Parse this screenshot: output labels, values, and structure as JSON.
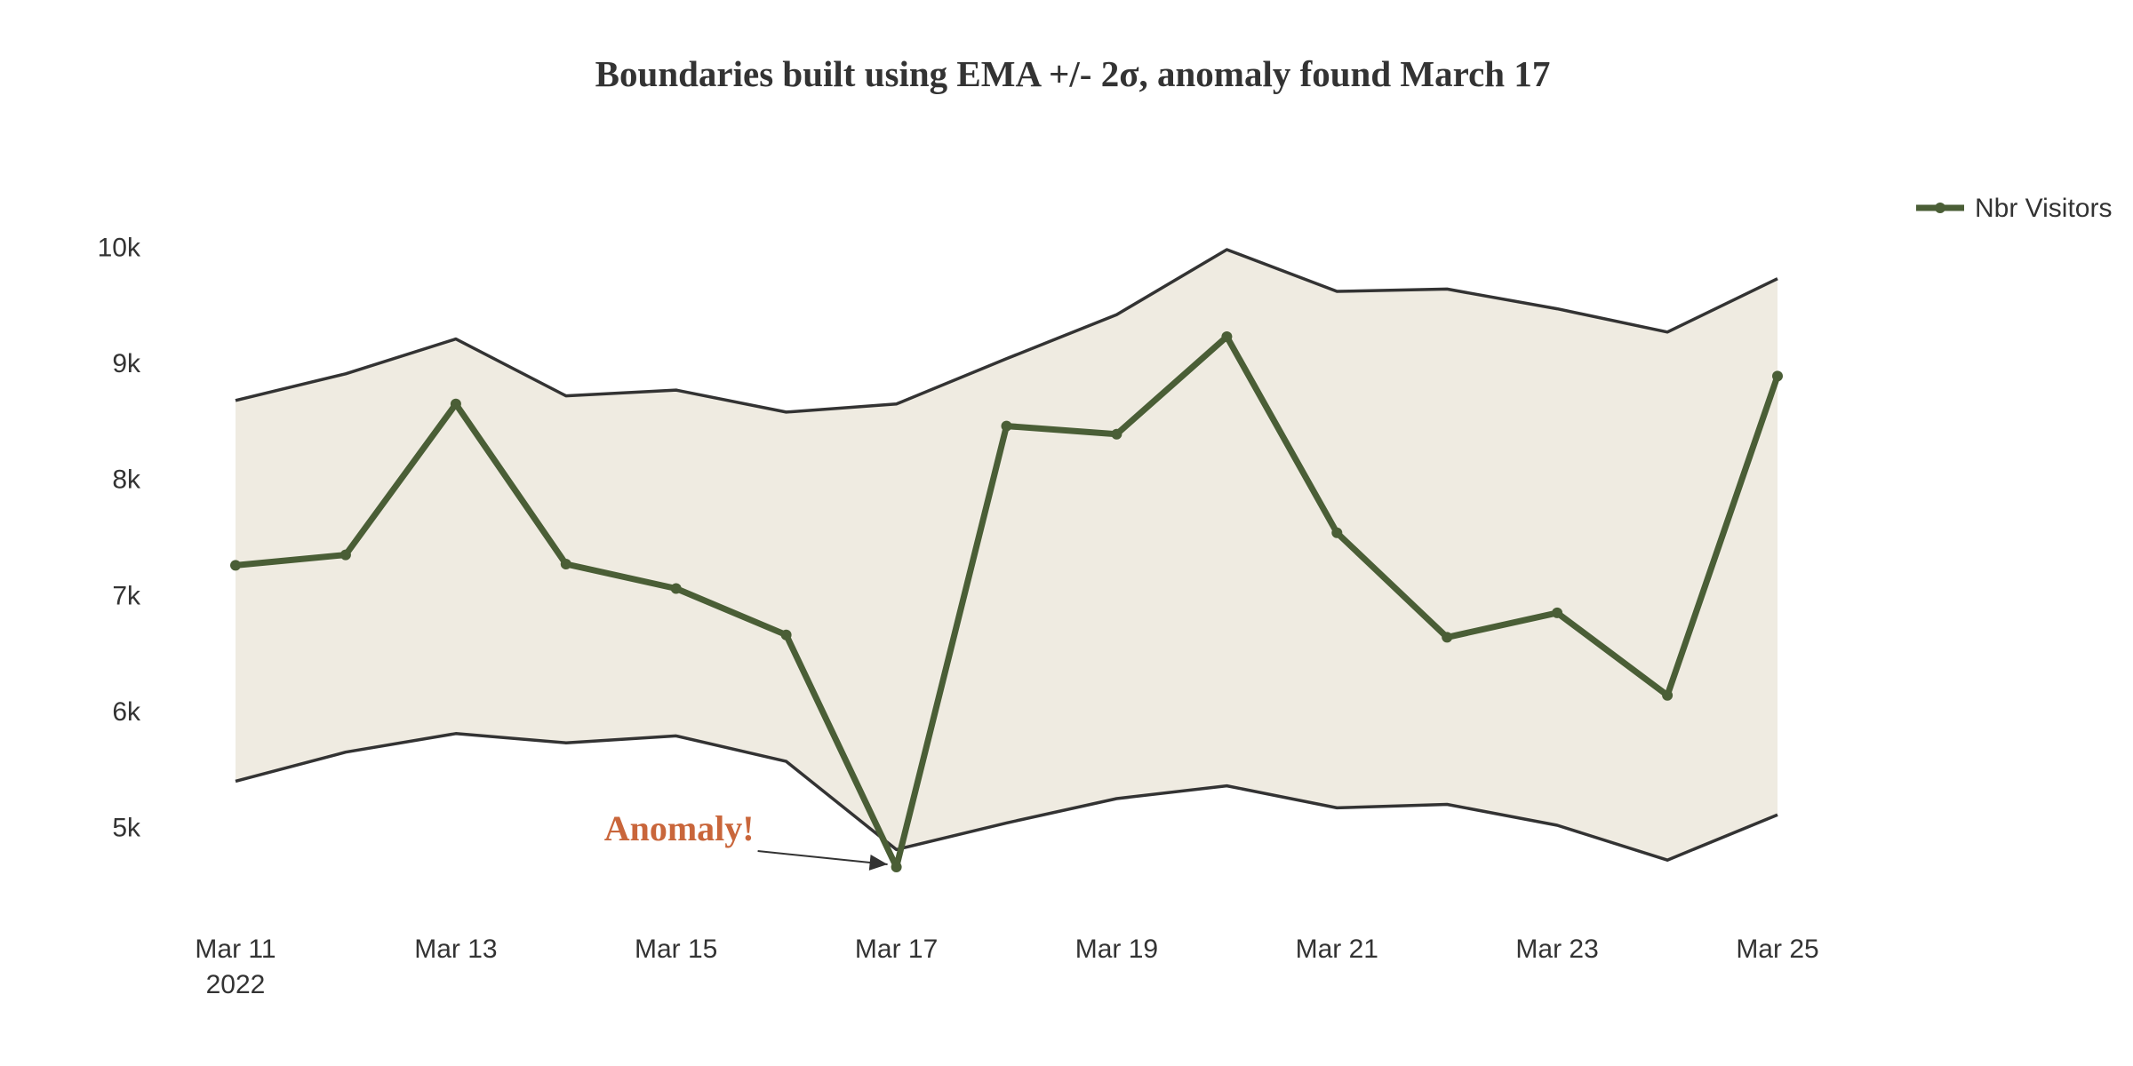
{
  "chart_data": {
    "type": "line",
    "title": "Boundaries built using EMA +/- 2σ, anomaly found March 17",
    "xlabel": "",
    "ylabel": "",
    "x": [
      "2022-03-11",
      "2022-03-12",
      "2022-03-13",
      "2022-03-14",
      "2022-03-15",
      "2022-03-16",
      "2022-03-17",
      "2022-03-18",
      "2022-03-19",
      "2022-03-20",
      "2022-03-21",
      "2022-03-22",
      "2022-03-23",
      "2022-03-24",
      "2022-03-25"
    ],
    "x_ticks": [
      {
        "date": "2022-03-11",
        "label": "Mar 11",
        "sublabel": "2022"
      },
      {
        "date": "2022-03-13",
        "label": "Mar 13",
        "sublabel": ""
      },
      {
        "date": "2022-03-15",
        "label": "Mar 15",
        "sublabel": ""
      },
      {
        "date": "2022-03-17",
        "label": "Mar 17",
        "sublabel": ""
      },
      {
        "date": "2022-03-19",
        "label": "Mar 19",
        "sublabel": ""
      },
      {
        "date": "2022-03-21",
        "label": "Mar 21",
        "sublabel": ""
      },
      {
        "date": "2022-03-23",
        "label": "Mar 23",
        "sublabel": ""
      },
      {
        "date": "2022-03-25",
        "label": "Mar 25",
        "sublabel": ""
      }
    ],
    "y_ticks": [
      {
        "value": 5000,
        "label": "5k"
      },
      {
        "value": 6000,
        "label": "6k"
      },
      {
        "value": 7000,
        "label": "7k"
      },
      {
        "value": 8000,
        "label": "8k"
      },
      {
        "value": 9000,
        "label": "9k"
      },
      {
        "value": 10000,
        "label": "10k"
      }
    ],
    "ylim": [
      4400,
      10600
    ],
    "grid": false,
    "legend_position": "top-right",
    "series": [
      {
        "name": "Nbr Visitors",
        "color": "#4a5e36",
        "values": [
          7260,
          7350,
          8650,
          7270,
          7060,
          6660,
          4660,
          8460,
          8390,
          9230,
          7540,
          6640,
          6850,
          6140,
          8890
        ]
      }
    ],
    "bands": [
      {
        "role": "EMA + 2σ / EMA - 2σ",
        "fill_color": "#efebe1",
        "line_color": "#333333",
        "upper": [
          8680,
          8910,
          9210,
          8720,
          8770,
          8580,
          8650,
          9040,
          9420,
          9980,
          9620,
          9640,
          9470,
          9270,
          9730
        ],
        "lower": [
          5400,
          5650,
          5810,
          5730,
          5790,
          5570,
          4810,
          5040,
          5250,
          5360,
          5170,
          5200,
          5020,
          4720,
          5110
        ]
      }
    ],
    "annotations": [
      {
        "text": "Anomaly!",
        "x": "2022-03-17",
        "y": 4660,
        "color": "#c9663b"
      }
    ]
  }
}
